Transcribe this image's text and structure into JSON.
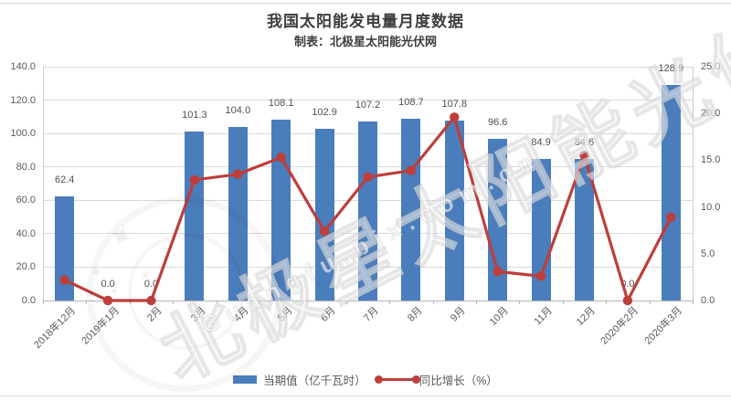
{
  "header": {
    "title": "我国太阳能发电量月度数据",
    "subtitle": "制表：北极星太阳能光伏网"
  },
  "watermark": {
    "text_cn": "北极星太阳能光伏网",
    "text_en": "Guangfu.bjx.com.cn"
  },
  "colors": {
    "bar": "#4a7dbc",
    "line": "#bd3e3b",
    "grid": "#dadada",
    "axis": "#b5b5b5",
    "tick_text": "#595959",
    "title_text": "#3d3d3d"
  },
  "chart_data": {
    "type": "bar+line",
    "title": "我国太阳能发电量月度数据",
    "subtitle": "制表：北极星太阳能光伏网",
    "categories": [
      "2018年12月",
      "2019年1月",
      "2月",
      "3月",
      "4月",
      "5月",
      "6月",
      "7月",
      "8月",
      "9月",
      "10月",
      "11月",
      "12月",
      "2020年2月",
      "2020年3月"
    ],
    "series": [
      {
        "name": "当期值（亿千瓦时）",
        "type": "bar",
        "axis": "left",
        "color": "#4a7dbc",
        "values": [
          62.4,
          0.0,
          0.0,
          101.3,
          104.0,
          108.1,
          102.9,
          107.2,
          108.7,
          107.8,
          96.6,
          84.9,
          84.6,
          0.0,
          128.9
        ]
      },
      {
        "name": "同比增长（%）",
        "type": "line",
        "axis": "right",
        "color": "#bd3e3b",
        "values": [
          2.2,
          0.0,
          0.0,
          12.9,
          13.5,
          15.3,
          7.4,
          13.2,
          13.9,
          19.6,
          3.1,
          2.6,
          15.5,
          0.0,
          8.9
        ]
      }
    ],
    "left_axis": {
      "min": 0,
      "max": 140,
      "step": 20
    },
    "right_axis": {
      "min": 0,
      "max": 25,
      "step": 5
    },
    "grid": true,
    "legend_position": "bottom",
    "data_labels": "bar series, one decimal"
  }
}
